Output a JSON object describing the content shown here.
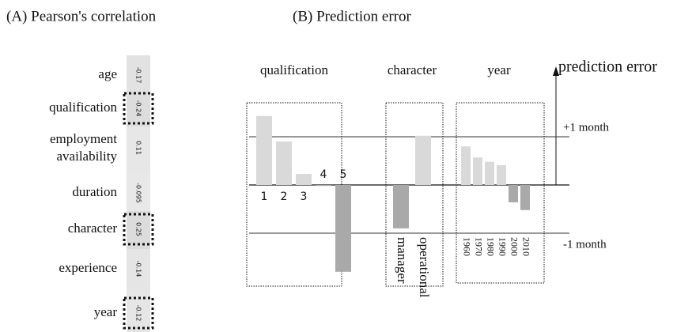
{
  "chart_data": [
    {
      "type": "heatmap",
      "title": "(A) Pearson's correlation",
      "categories": [
        "age",
        "qualification",
        "employment availability",
        "duration",
        "character",
        "experience",
        "year"
      ],
      "values": [
        -0.17,
        -0.24,
        0.11,
        -0.095,
        0.25,
        -0.14,
        -0.12
      ],
      "highlight": [
        1,
        4,
        6
      ]
    },
    {
      "type": "grouped-bar",
      "title": "(B) Prediction error",
      "ylabel": "prediction error",
      "ylim": [
        -2,
        2
      ],
      "yticks": [
        {
          "value": 1,
          "label": "+1 month"
        },
        {
          "value": -1,
          "label": "-1 month"
        }
      ],
      "colors": {
        "positive": "#d9d9d9",
        "negative": "#a9a9a9"
      },
      "groups": [
        {
          "name": "qualification",
          "categories": [
            "1",
            "2",
            "3",
            "4",
            "5"
          ],
          "values": [
            1.43,
            0.9,
            0.23,
            -0.02,
            -1.8
          ]
        },
        {
          "name": "character",
          "categories": [
            "manager",
            "operational"
          ],
          "values": [
            -0.9,
            1.02
          ]
        },
        {
          "name": "year",
          "categories": [
            "1960",
            "1970",
            "1980",
            "1990",
            "2000",
            "2010"
          ],
          "values": [
            0.8,
            0.57,
            0.48,
            0.41,
            -0.36,
            -0.52
          ]
        }
      ]
    }
  ]
}
